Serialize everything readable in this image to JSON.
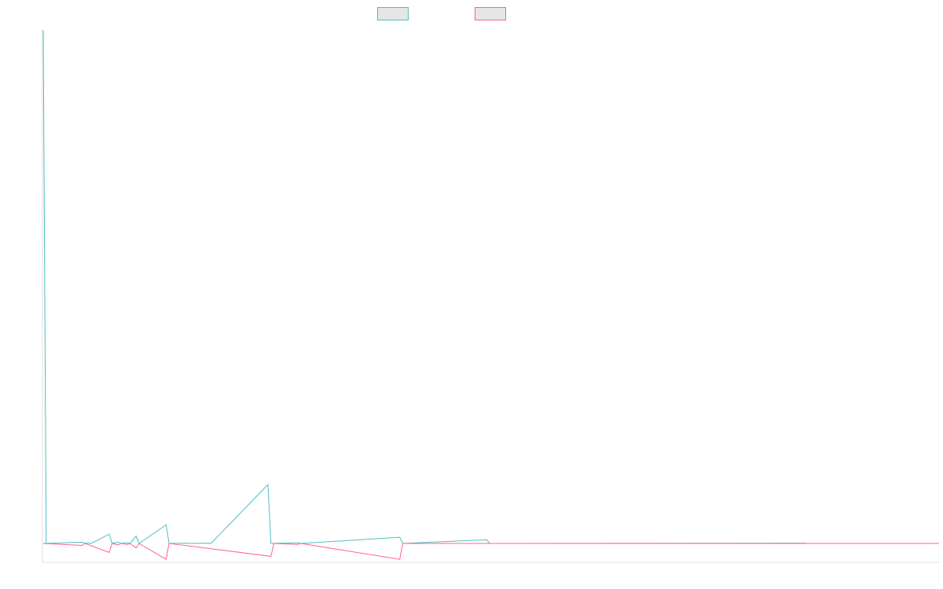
{
  "colors": {
    "series_a": "#4bc0c0",
    "series_b": "#ff6384",
    "legend_fill": "#e6e6e6",
    "axis": "#e0e0e0"
  },
  "legend": {
    "items": [
      {
        "label": "",
        "color": "#4bc0c0"
      },
      {
        "label": "",
        "color": "#ff6384"
      }
    ]
  },
  "chart_data": {
    "type": "line",
    "title": "",
    "xlabel": "",
    "ylabel": "",
    "grid": false,
    "legend_placement": "top-center",
    "x_count": 300,
    "ylim": [
      -30,
      830
    ],
    "series": [
      {
        "color": "#4bc0c0",
        "orientation": "up",
        "points": [
          [
            0,
            828
          ],
          [
            1,
            0
          ],
          [
            13,
            2
          ],
          [
            14,
            0
          ],
          [
            15,
            1
          ],
          [
            16,
            0
          ],
          [
            22,
            15
          ],
          [
            23,
            0
          ],
          [
            25,
            2
          ],
          [
            26,
            0
          ],
          [
            28,
            1
          ],
          [
            29,
            0
          ],
          [
            31,
            12
          ],
          [
            32,
            0
          ],
          [
            41,
            30
          ],
          [
            42,
            0
          ],
          [
            48,
            0.5
          ],
          [
            49,
            0
          ],
          [
            55,
            0.5
          ],
          [
            56,
            0
          ],
          [
            75,
            95
          ],
          [
            76,
            0
          ],
          [
            85,
            1
          ],
          [
            86,
            0
          ],
          [
            119,
            10
          ],
          [
            120,
            0
          ],
          [
            148,
            6
          ],
          [
            149,
            0
          ],
          [
            254,
            0.5
          ],
          [
            255,
            0
          ]
        ]
      },
      {
        "color": "#ff6384",
        "orientation": "down",
        "points": [
          [
            0,
            0
          ],
          [
            13,
            4
          ],
          [
            14,
            0
          ],
          [
            22,
            18
          ],
          [
            23,
            0
          ],
          [
            25,
            3
          ],
          [
            26,
            0
          ],
          [
            28,
            2
          ],
          [
            29,
            0
          ],
          [
            31,
            9
          ],
          [
            32,
            0
          ],
          [
            41,
            32
          ],
          [
            42,
            0
          ],
          [
            76,
            26
          ],
          [
            77,
            0
          ],
          [
            85,
            2
          ],
          [
            86,
            0
          ],
          [
            119,
            32
          ],
          [
            120,
            0
          ]
        ]
      }
    ]
  }
}
